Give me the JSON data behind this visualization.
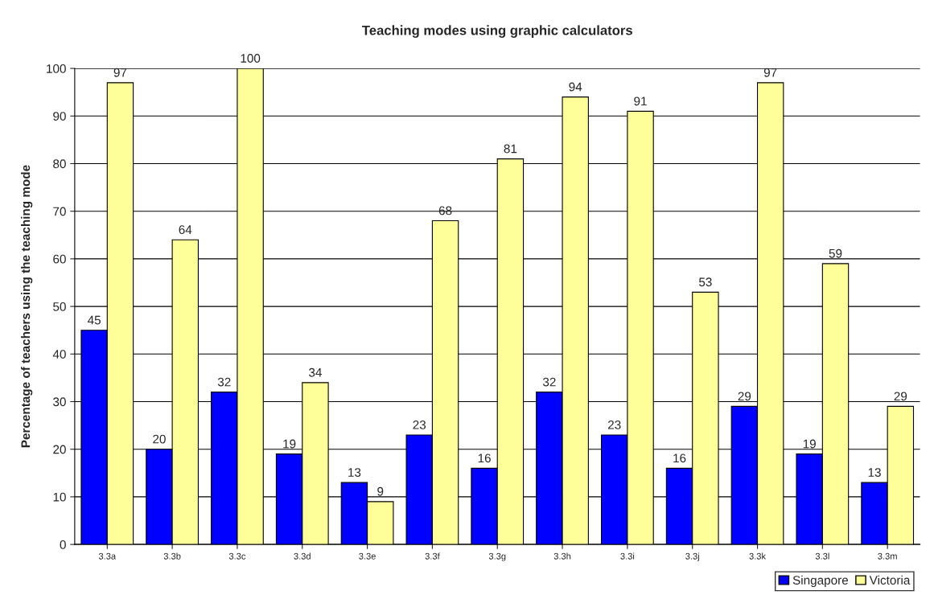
{
  "chart_data": {
    "type": "bar",
    "title": "Teaching modes using graphic calculators",
    "ylabel": "Percentage of teachers using the teaching mode",
    "categories": [
      "3.3a",
      "3.3b",
      "3.3c",
      "3.3d",
      "3.3e",
      "3.3f",
      "3.3g",
      "3.3h",
      "3.3i",
      "3.3j",
      "3.3k",
      "3.3l",
      "3.3m"
    ],
    "series": [
      {
        "name": "Singapore",
        "color": "#0000ff",
        "values": [
          45,
          20,
          32,
          19,
          13,
          23,
          16,
          32,
          23,
          16,
          29,
          19,
          13
        ]
      },
      {
        "name": "Victoria",
        "color": "#ffff99",
        "values": [
          97,
          64,
          100,
          34,
          9,
          68,
          81,
          94,
          91,
          53,
          97,
          59,
          29
        ]
      }
    ],
    "ylim": [
      0,
      100
    ],
    "yticks": [
      0,
      10,
      20,
      30,
      40,
      50,
      60,
      70,
      80,
      90,
      100
    ],
    "grid": "y",
    "legend": "bottom right",
    "data_labels": true
  }
}
